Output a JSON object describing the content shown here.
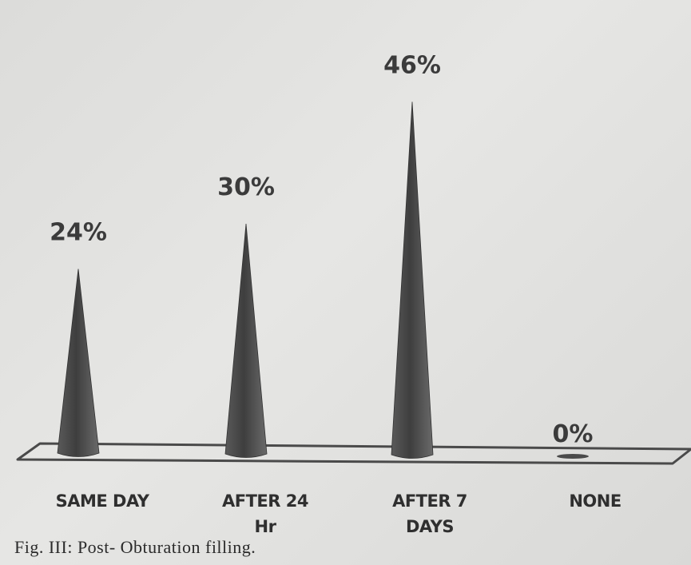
{
  "caption": "Fig. III: Post- Obturation filling.",
  "chart_data": {
    "type": "bar",
    "title": "",
    "xlabel": "",
    "ylabel": "",
    "ylim": [
      0,
      50
    ],
    "grid": false,
    "categories": [
      "SAME DAY",
      "AFTER 24 Hr",
      "AFTER 7 DAYS",
      "NONE"
    ],
    "category_lines": [
      [
        "SAME DAY"
      ],
      [
        "AFTER 24",
        "Hr"
      ],
      [
        "AFTER 7",
        "DAYS"
      ],
      [
        "NONE"
      ]
    ],
    "values": [
      24,
      30,
      46,
      0
    ],
    "data_labels": [
      "24%",
      "30%",
      "46%",
      "0%"
    ],
    "bar_color": "#4a4a4a"
  }
}
